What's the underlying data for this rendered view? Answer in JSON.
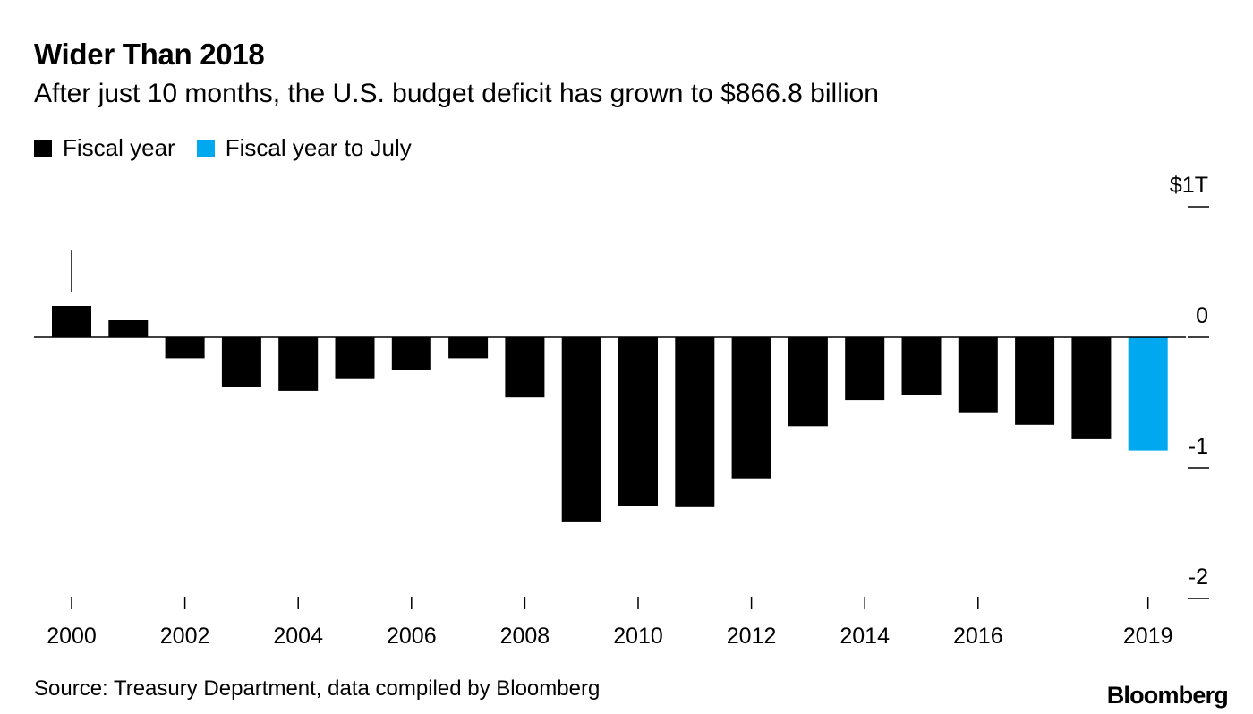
{
  "chart_data": {
    "type": "bar",
    "title": "Wider Than 2018",
    "subtitle": "After just 10 months, the U.S. budget deficit has grown to $866.8 billion",
    "legend": [
      {
        "label": "Fiscal year",
        "color": "#000000"
      },
      {
        "label": "Fiscal year to July",
        "color": "#00a8f0"
      }
    ],
    "categories": [
      "2000",
      "2001",
      "2002",
      "2003",
      "2004",
      "2005",
      "2006",
      "2007",
      "2008",
      "2009",
      "2010",
      "2011",
      "2012",
      "2013",
      "2014",
      "2015",
      "2016",
      "2017",
      "2018",
      "2019"
    ],
    "values": [
      0.24,
      0.13,
      -0.16,
      -0.38,
      -0.41,
      -0.32,
      -0.25,
      -0.16,
      -0.46,
      -1.41,
      -1.29,
      -1.3,
      -1.08,
      -0.68,
      -0.48,
      -0.44,
      -0.58,
      -0.67,
      -0.78,
      -0.867
    ],
    "series_assignment": [
      "Fiscal year",
      "Fiscal year",
      "Fiscal year",
      "Fiscal year",
      "Fiscal year",
      "Fiscal year",
      "Fiscal year",
      "Fiscal year",
      "Fiscal year",
      "Fiscal year",
      "Fiscal year",
      "Fiscal year",
      "Fiscal year",
      "Fiscal year",
      "Fiscal year",
      "Fiscal year",
      "Fiscal year",
      "Fiscal year",
      "Fiscal year",
      "Fiscal year to July"
    ],
    "ylim": [
      -2,
      1
    ],
    "yticks": [
      {
        "value": 1,
        "label": "$1T"
      },
      {
        "value": 0,
        "label": "0"
      },
      {
        "value": -1,
        "label": "-1"
      },
      {
        "value": -2,
        "label": "-2"
      }
    ],
    "xticks": [
      {
        "category": "2000",
        "label": "2000"
      },
      {
        "category": "2002",
        "label": "2002"
      },
      {
        "category": "2004",
        "label": "2004"
      },
      {
        "category": "2006",
        "label": "2006"
      },
      {
        "category": "2008",
        "label": "2008"
      },
      {
        "category": "2010",
        "label": "2010"
      },
      {
        "category": "2012",
        "label": "2012"
      },
      {
        "category": "2014",
        "label": "2014"
      },
      {
        "category": "2016",
        "label": "2016"
      },
      {
        "category": "2019",
        "label": "2019"
      }
    ],
    "annotation_marker": {
      "category": "2000",
      "value_from": 0.35,
      "value_to": 0.67
    },
    "xlabel": "",
    "ylabel": "",
    "y_axis_position": "right"
  },
  "source": "Source: Treasury Department, data compiled by Bloomberg",
  "brand": "Bloomberg"
}
